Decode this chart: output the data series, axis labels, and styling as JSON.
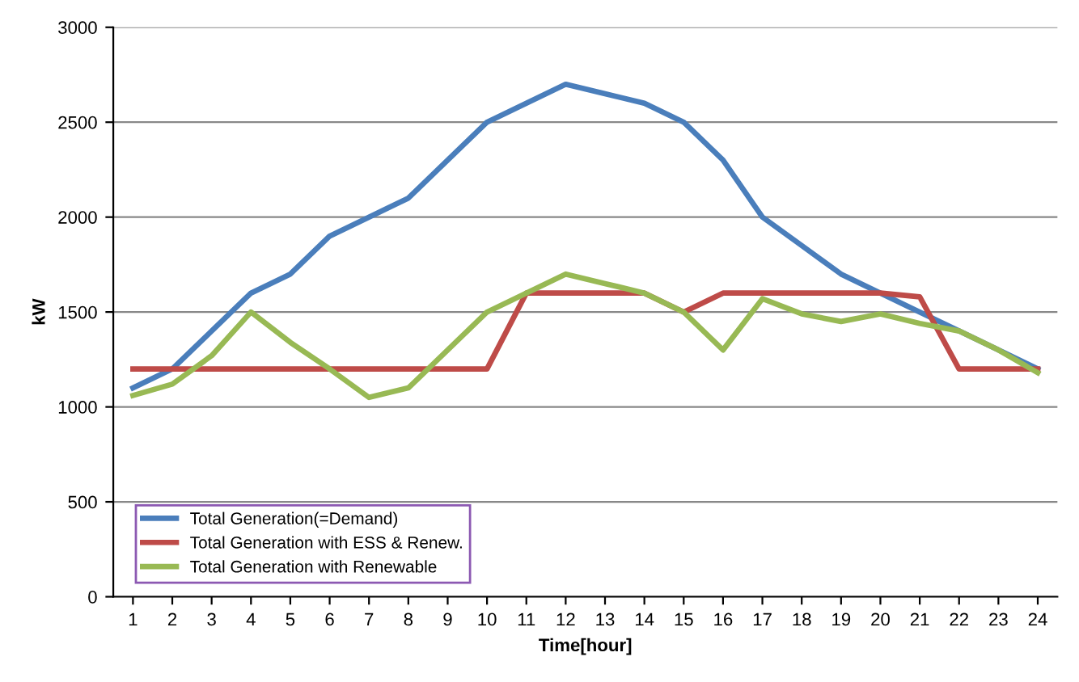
{
  "chart_data": {
    "type": "line",
    "xlabel": "Time[hour]",
    "ylabel": "kW",
    "categories": [
      "1",
      "2",
      "3",
      "4",
      "5",
      "6",
      "7",
      "8",
      "9",
      "10",
      "11",
      "12",
      "13",
      "14",
      "15",
      "16",
      "17",
      "18",
      "19",
      "20",
      "21",
      "22",
      "23",
      "24"
    ],
    "series": [
      {
        "name": "Total Generation(=Demand)",
        "color": "#4a7ebb",
        "values": [
          1100,
          1200,
          1400,
          1600,
          1700,
          1900,
          2000,
          2100,
          2300,
          2500,
          2600,
          2700,
          2650,
          2600,
          2500,
          2300,
          2000,
          1850,
          1700,
          1600,
          1500,
          1400,
          1300,
          1200
        ]
      },
      {
        "name": "Total Generation with ESS & Renew.",
        "color": "#be4b48",
        "values": [
          1200,
          1200,
          1200,
          1200,
          1200,
          1200,
          1200,
          1200,
          1200,
          1200,
          1600,
          1600,
          1600,
          1600,
          1500,
          1600,
          1600,
          1600,
          1600,
          1600,
          1580,
          1200,
          1200,
          1200
        ]
      },
      {
        "name": "Total Generation with Renewable",
        "color": "#98b954",
        "values": [
          1060,
          1120,
          1270,
          1500,
          1340,
          1200,
          1050,
          1100,
          1300,
          1500,
          1600,
          1700,
          1650,
          1600,
          1500,
          1300,
          1570,
          1490,
          1450,
          1490,
          1440,
          1400,
          1300,
          1180
        ]
      }
    ],
    "ylim": [
      0,
      3000
    ],
    "yticks": [
      0,
      500,
      1000,
      1500,
      2000,
      2500,
      3000
    ],
    "grid": "y",
    "legend": "bottom left",
    "marker": "none",
    "line_style": "solid"
  }
}
